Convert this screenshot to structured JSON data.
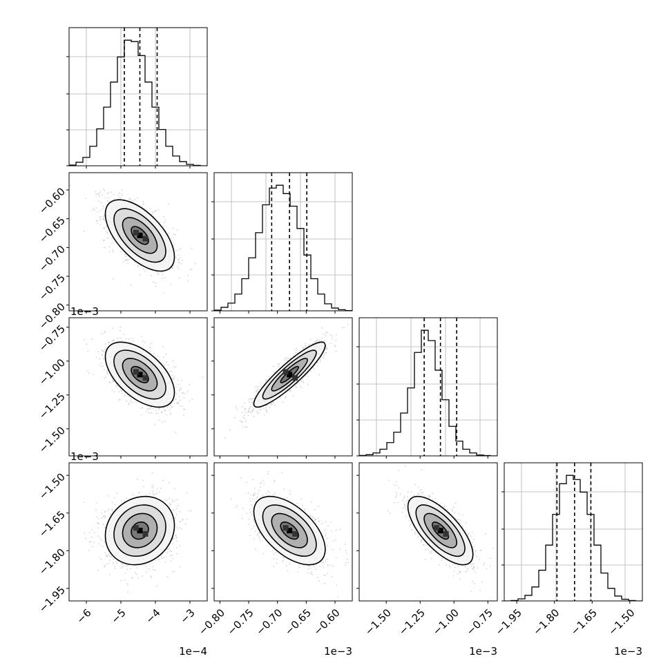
{
  "chart_data": {
    "type": "corner",
    "title": "",
    "grid": true,
    "n_params": 4,
    "colors": {
      "hist": "#000000",
      "contour": "#000000",
      "points": "#9e9e9e",
      "grid": "#b0b0b0"
    },
    "axes": [
      {
        "range": [
          -6.5,
          -2.5
        ],
        "ticks": [
          -6,
          -5,
          -4,
          -3
        ],
        "tick_labels": [
          "−6",
          "−5",
          "−4",
          "−3"
        ],
        "offset_label": "1e−4"
      },
      {
        "range": [
          -0.81,
          -0.57
        ],
        "ticks": [
          -0.8,
          -0.75,
          -0.7,
          -0.65,
          -0.6
        ],
        "tick_labels": [
          "−0.80",
          "−0.75",
          "−0.70",
          "−0.65",
          "−0.60"
        ],
        "offset_label": "1e−3"
      },
      {
        "range": [
          -1.7,
          -0.68
        ],
        "ticks": [
          -1.5,
          -1.25,
          -1.0,
          -0.75
        ],
        "tick_labels": [
          "−1.50",
          "−1.25",
          "−1.00",
          "−0.75"
        ],
        "offset_label": "1e−3"
      },
      {
        "range": [
          -2.0,
          -1.45
        ],
        "ticks": [
          -1.95,
          -1.8,
          -1.65,
          -1.5
        ],
        "tick_labels": [
          "−1.95",
          "−1.80",
          "−1.65",
          "−1.50"
        ],
        "offset_label": "1e−3"
      }
    ],
    "quantiles": [
      [
        -4.9,
        -4.45,
        -3.95
      ],
      [
        -0.71,
        -0.679,
        -0.649
      ],
      [
        -1.22,
        -1.1,
        -0.98
      ],
      [
        -1.79,
        -1.72,
        -1.655
      ]
    ],
    "histograms": [
      {
        "values": [
          5,
          25,
          60,
          140,
          265,
          420,
          600,
          780,
          900,
          890,
          790,
          600,
          420,
          260,
          140,
          70,
          30,
          10,
          3,
          0
        ]
      },
      {
        "values": [
          5,
          25,
          55,
          120,
          230,
          380,
          560,
          760,
          880,
          900,
          840,
          750,
          590,
          400,
          230,
          120,
          50,
          20,
          8,
          2
        ]
      },
      {
        "values": [
          3,
          8,
          20,
          45,
          90,
          160,
          290,
          460,
          700,
          850,
          780,
          580,
          380,
          200,
          100,
          45,
          20,
          6,
          2,
          0
        ]
      },
      {
        "values": [
          0,
          3,
          15,
          40,
          100,
          220,
          400,
          620,
          840,
          900,
          870,
          780,
          620,
          400,
          200,
          90,
          35,
          12,
          3,
          0
        ]
      }
    ],
    "pairs": [
      {
        "row": 1,
        "col": 0,
        "mean": [
          -4.45,
          -0.679
        ],
        "sd": [
          0.5,
          0.031
        ],
        "rho": -0.6
      },
      {
        "row": 2,
        "col": 0,
        "mean": [
          -4.45,
          -1.1
        ],
        "sd": [
          0.5,
          0.12
        ],
        "rho": -0.55
      },
      {
        "row": 2,
        "col": 1,
        "mean": [
          -0.679,
          -1.1
        ],
        "sd": [
          0.031,
          0.12
        ],
        "rho": 0.9
      },
      {
        "row": 3,
        "col": 0,
        "mean": [
          -4.45,
          -1.72
        ],
        "sd": [
          0.5,
          0.068
        ],
        "rho": 0.15
      },
      {
        "row": 3,
        "col": 1,
        "mean": [
          -0.679,
          -1.72
        ],
        "sd": [
          0.031,
          0.068
        ],
        "rho": -0.55
      },
      {
        "row": 3,
        "col": 2,
        "mean": [
          -1.1,
          -1.72
        ],
        "sd": [
          0.12,
          0.068
        ],
        "rho": -0.7
      }
    ],
    "contour_levels_sigma": [
      0.5,
      1.0,
      1.5,
      2.0
    ]
  }
}
